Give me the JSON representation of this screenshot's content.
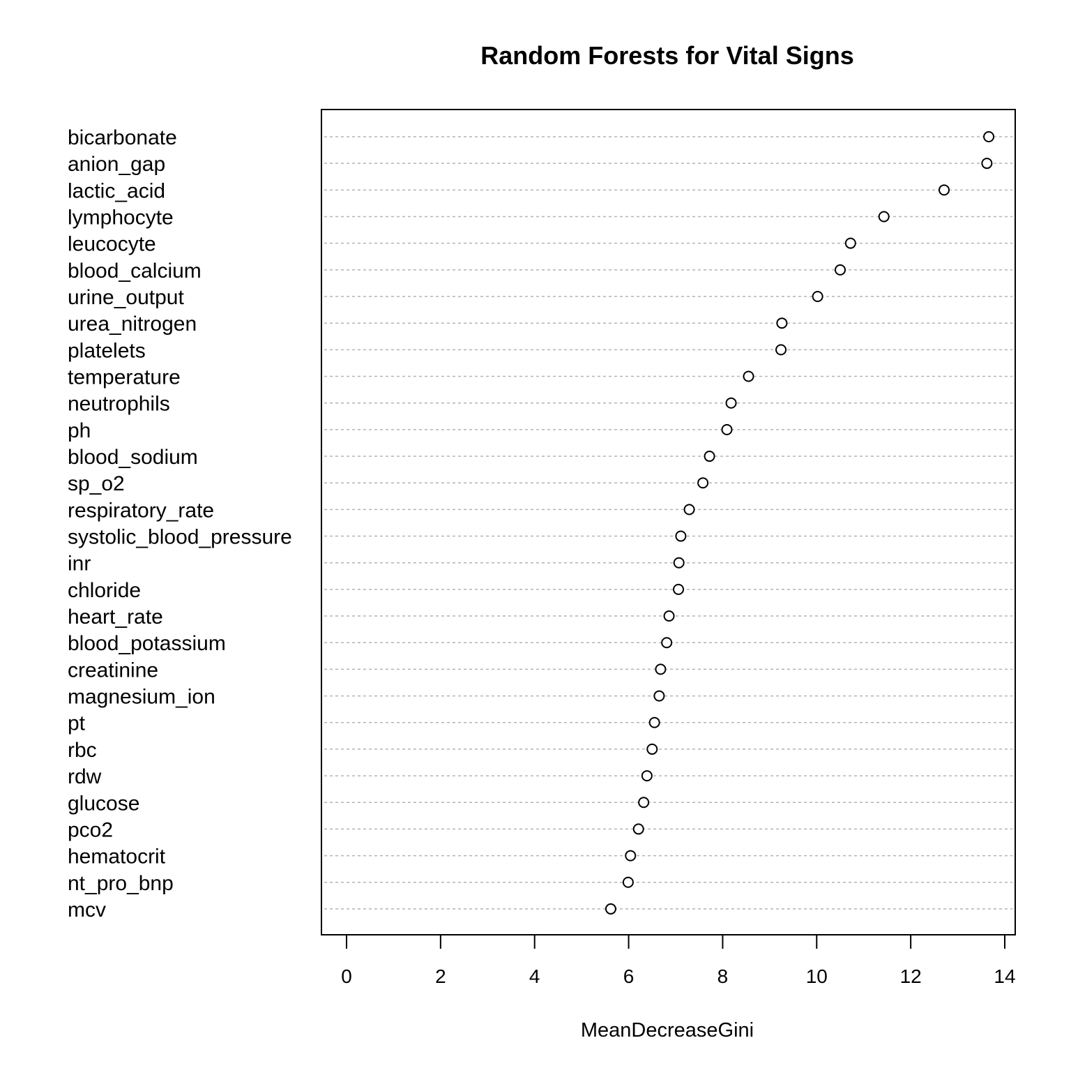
{
  "chart_data": {
    "type": "scatter",
    "title": "Random Forests for Vital Signs",
    "xlabel": "MeanDecreaseGini",
    "ylabel": "",
    "xlim": [
      0,
      14
    ],
    "xticks": [
      0,
      2,
      4,
      6,
      8,
      10,
      12,
      14
    ],
    "grid": "horizontal dotted lines per category",
    "point_style": "open circle",
    "categories": [
      "bicarbonate",
      "anion_gap",
      "lactic_acid",
      "lymphocyte",
      "leucocyte",
      "blood_calcium",
      "urine_output",
      "urea_nitrogen",
      "platelets",
      "temperature",
      "neutrophils",
      "ph",
      "blood_sodium",
      "sp_o2",
      "respiratory_rate",
      "systolic_blood_pressure",
      "inr",
      "chloride",
      "heart_rate",
      "blood_potassium",
      "creatinine",
      "magnesium_ion",
      "pt",
      "rbc",
      "rdw",
      "glucose",
      "pco2",
      "hematocrit",
      "nt_pro_bnp",
      "mcv"
    ],
    "values": [
      13.66,
      13.62,
      12.71,
      11.43,
      10.72,
      10.5,
      10.02,
      9.26,
      9.24,
      8.55,
      8.18,
      8.09,
      7.72,
      7.58,
      7.29,
      7.11,
      7.07,
      7.06,
      6.86,
      6.81,
      6.68,
      6.65,
      6.55,
      6.5,
      6.39,
      6.32,
      6.21,
      6.04,
      5.99,
      5.62
    ]
  }
}
